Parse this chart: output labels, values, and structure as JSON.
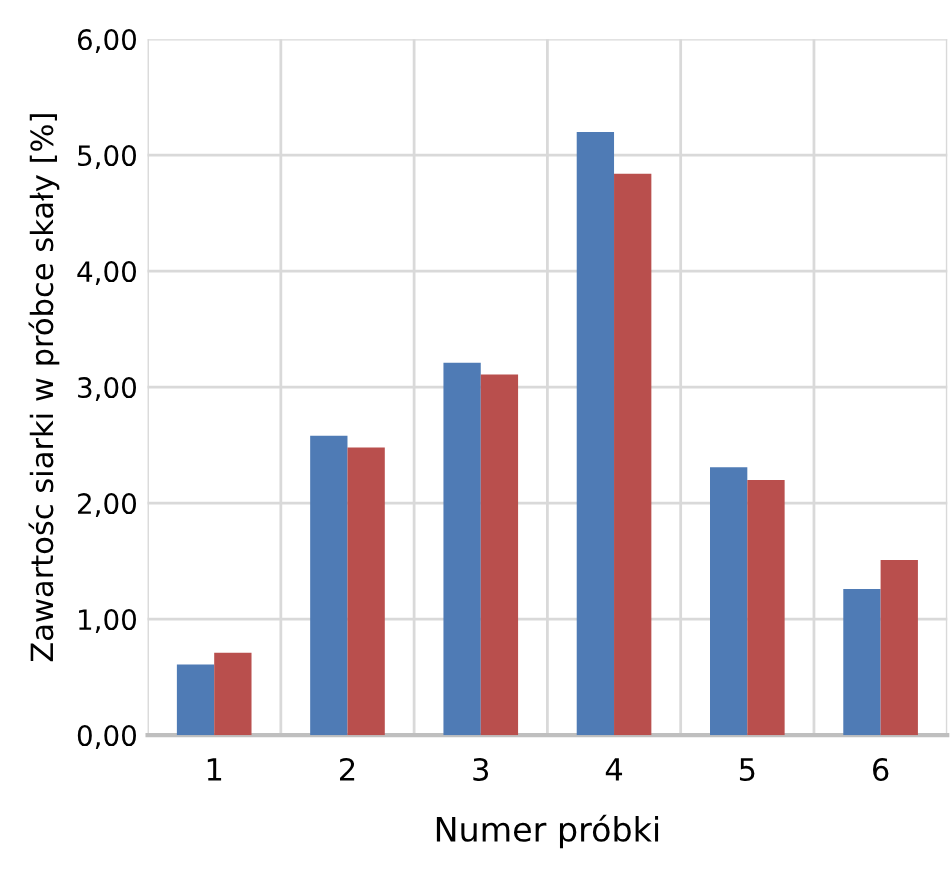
{
  "chart_data": {
    "type": "bar",
    "xlabel": "Numer próbki",
    "ylabel": "Zawartośc siarki w próbce skały [%]",
    "categories": [
      "1",
      "2",
      "3",
      "4",
      "5",
      "6"
    ],
    "series": [
      {
        "color": "#4f7bb5",
        "values": [
          0.61,
          2.58,
          3.21,
          5.2,
          2.31,
          1.26
        ]
      },
      {
        "color": "#b94f4d",
        "values": [
          0.71,
          2.48,
          3.11,
          4.84,
          2.2,
          1.51
        ]
      }
    ],
    "ylim": [
      0,
      6
    ],
    "yticks": [
      {
        "value": 0,
        "label": "0,00"
      },
      {
        "value": 1,
        "label": "1,00"
      },
      {
        "value": 2,
        "label": "2,00"
      },
      {
        "value": 3,
        "label": "3,00"
      },
      {
        "value": 4,
        "label": "4,00"
      },
      {
        "value": 5,
        "label": "5,00"
      },
      {
        "value": 6,
        "label": "6,00"
      }
    ],
    "grid": true
  }
}
